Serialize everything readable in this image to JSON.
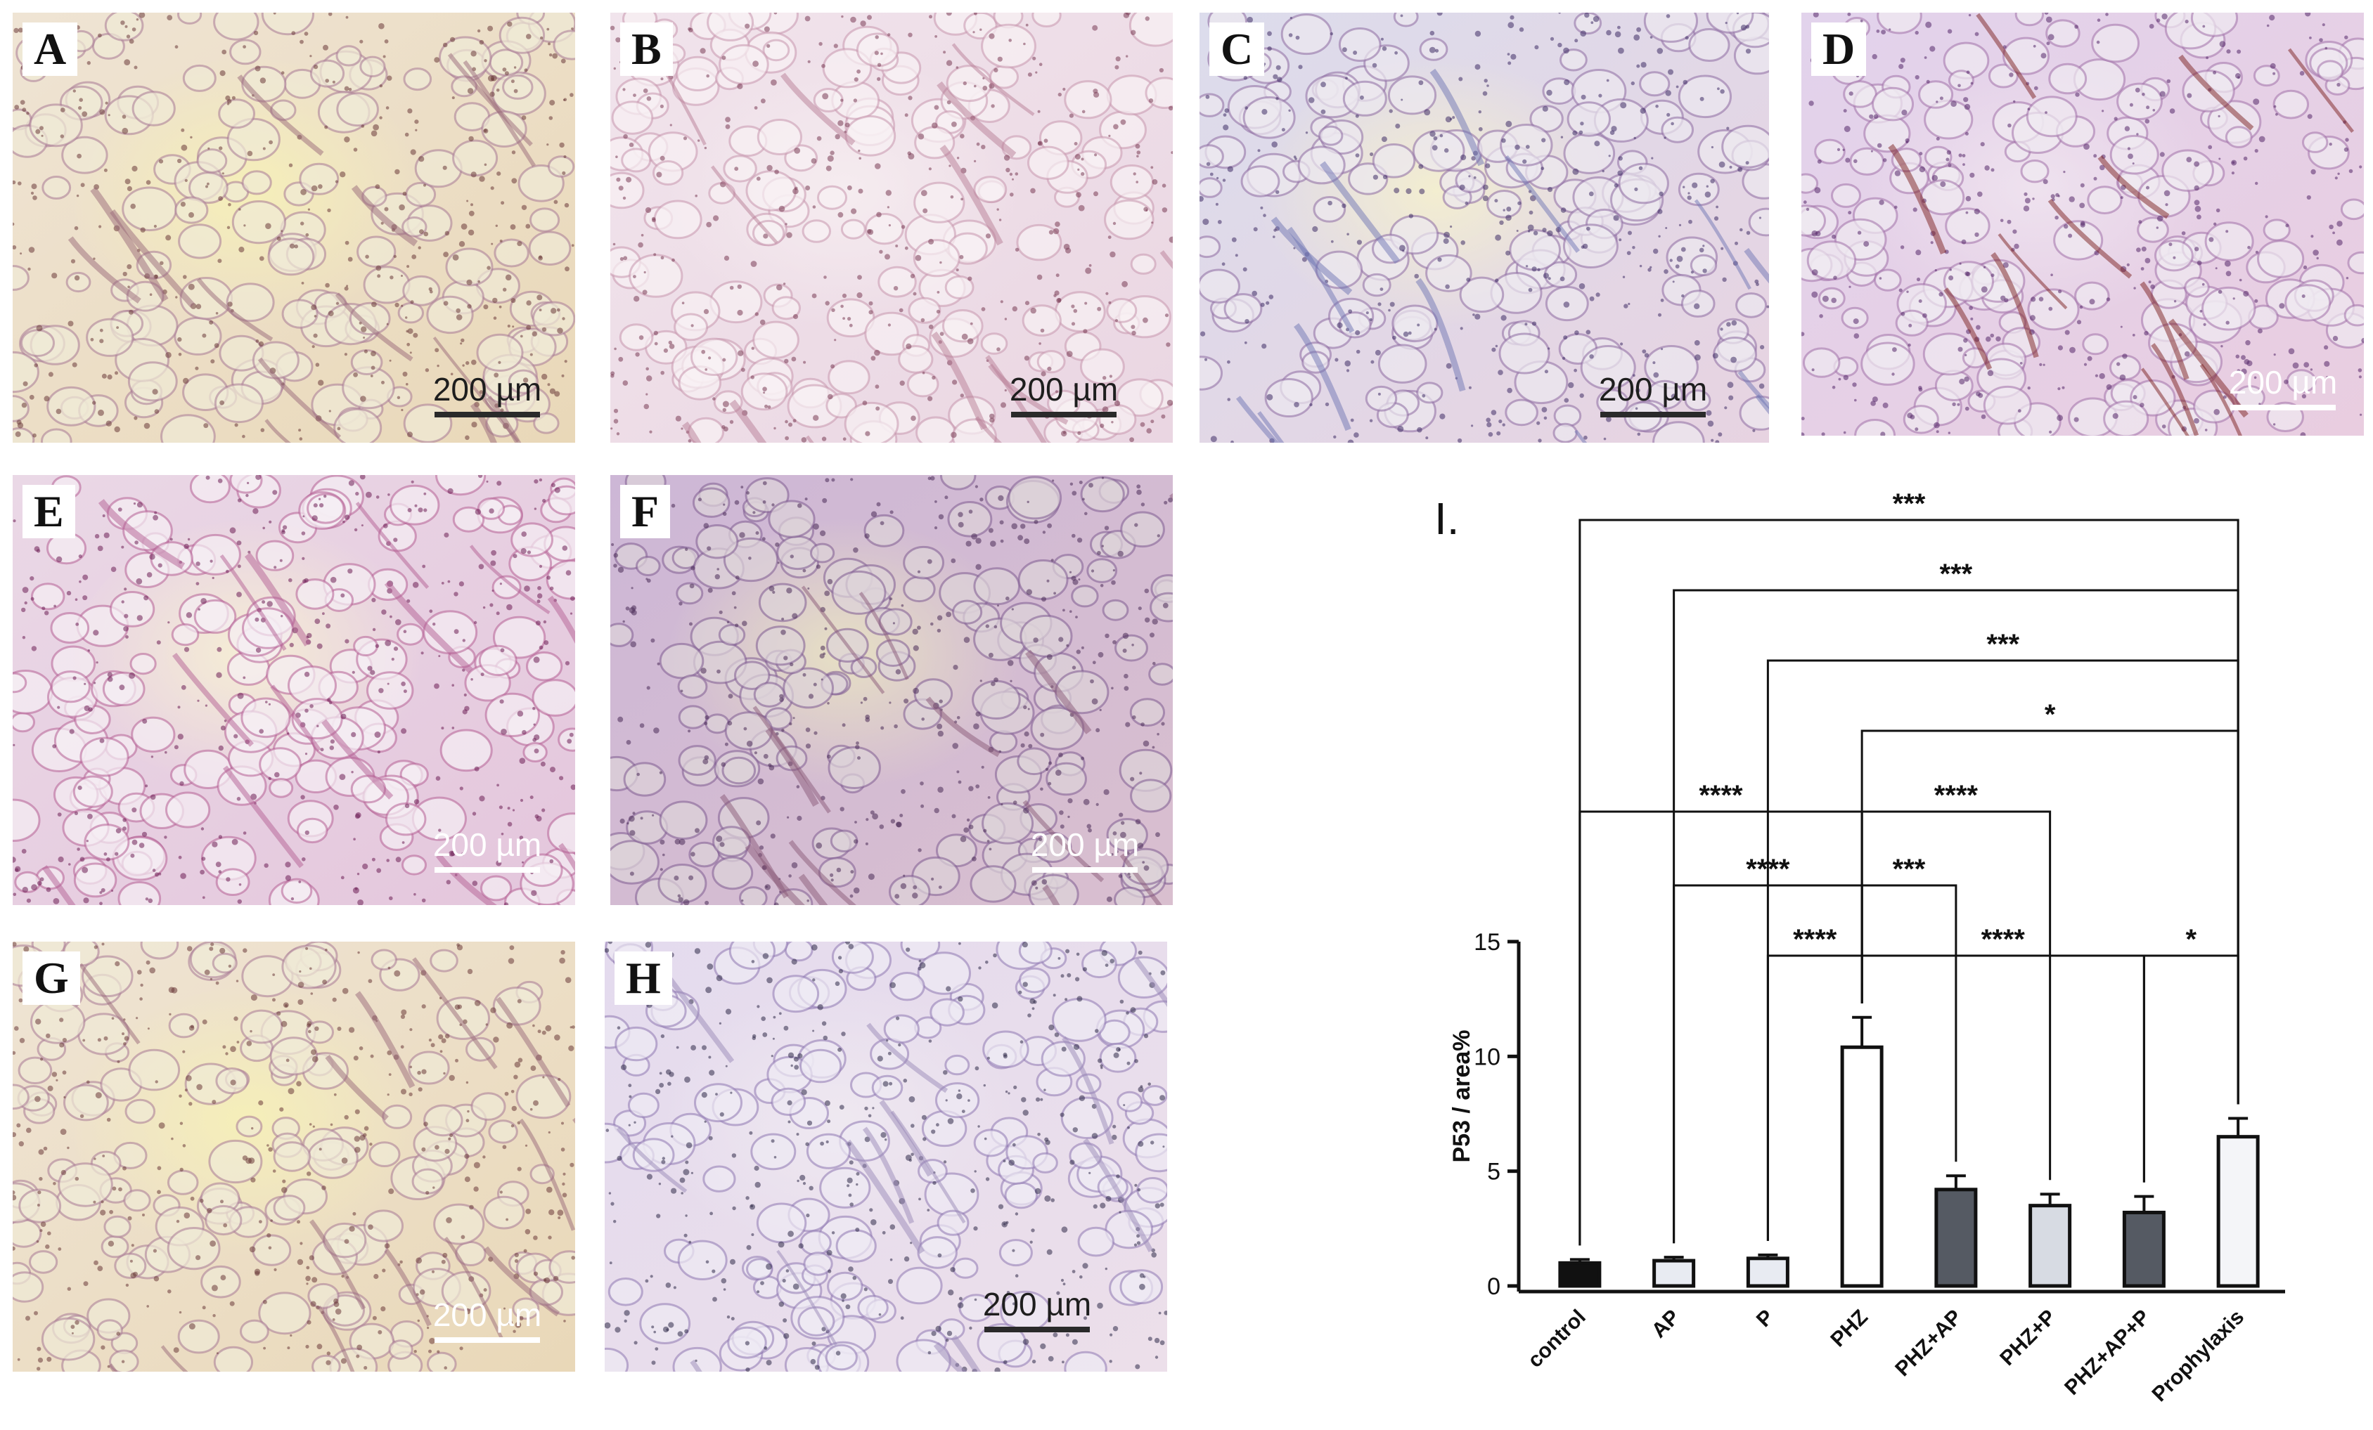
{
  "figure": {
    "panels": [
      {
        "label": "A",
        "scale": "200 µm",
        "tone": "yellow"
      },
      {
        "label": "B",
        "scale": "200 µm",
        "tone": "pink"
      },
      {
        "label": "C",
        "scale": "200 µm",
        "tone": "blue"
      },
      {
        "label": "D",
        "scale": "200 µm",
        "tone": "bluepink"
      },
      {
        "label": "E",
        "scale": "200 µm",
        "tone": "magenta"
      },
      {
        "label": "F",
        "scale": "200 µm",
        "tone": "purple"
      },
      {
        "label": "G",
        "scale": "200 µm",
        "tone": "yellow"
      },
      {
        "label": "H",
        "scale": "200 µm",
        "tone": "lilac"
      }
    ]
  },
  "chart_data": {
    "type": "bar",
    "panel_label": "I.",
    "ylabel": "P53 / area%",
    "xlabel": "",
    "ylim": [
      0,
      15
    ],
    "yticks": [
      0,
      5,
      10,
      15
    ],
    "categories": [
      "control",
      "AP",
      "P",
      "PHZ",
      "PHZ+AP",
      "PHZ+P",
      "PHZ+AP+P",
      "Prophylaxis"
    ],
    "values": [
      1.0,
      1.1,
      1.2,
      10.4,
      4.2,
      3.5,
      3.2,
      6.5
    ],
    "errors": [
      0.15,
      0.15,
      0.15,
      1.3,
      0.6,
      0.5,
      0.7,
      0.8
    ],
    "bar_colors": [
      "#111111",
      "#e8ebf2",
      "#e8ebf2",
      "#ffffff",
      "#555a63",
      "#d7dbe3",
      "#555a63",
      "#f4f5f8"
    ],
    "comparisons": [
      {
        "from": 0,
        "to": 7,
        "label": "***"
      },
      {
        "from": 1,
        "to": 7,
        "label": "***"
      },
      {
        "from": 2,
        "to": 7,
        "label": "***"
      },
      {
        "from": 3,
        "to": 7,
        "label": "*"
      },
      {
        "from": 0,
        "to": 3,
        "label": "****"
      },
      {
        "from": 3,
        "to": 5,
        "label": "****"
      },
      {
        "from": 1,
        "to": 3,
        "label": "****"
      },
      {
        "from": 3,
        "to": 4,
        "label": "***"
      },
      {
        "from": 2,
        "to": 3,
        "label": "****"
      },
      {
        "from": 3,
        "to": 6,
        "label": "****"
      },
      {
        "from": 6,
        "to": 7,
        "label": "*"
      }
    ]
  }
}
